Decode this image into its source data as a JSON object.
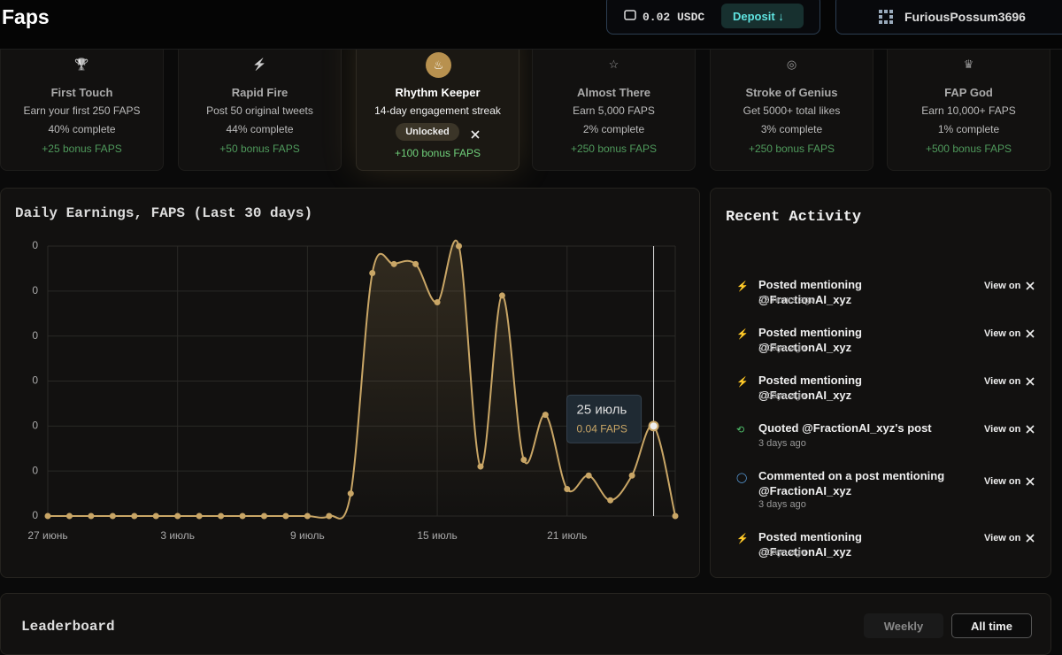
{
  "header": {
    "title": "Faps",
    "balance": "0.02 USDC",
    "deposit": "Deposit",
    "username": "FuriousPossum3696"
  },
  "achievements": [
    {
      "title": "First Touch",
      "description": "Earn your first 250 FAPS",
      "progress": "40% complete",
      "bonus": "+25 bonus FAPS"
    },
    {
      "title": "Rapid Fire",
      "description": "Post 50 original tweets",
      "progress": "44% complete",
      "bonus": "+50 bonus FAPS"
    },
    {
      "title": "Rhythm Keeper",
      "description": "14-day engagement streak",
      "status": "Unlocked",
      "bonus": "+100 bonus FAPS"
    },
    {
      "title": "Almost There",
      "description": "Earn 5,000 FAPS",
      "progress": "2% complete",
      "bonus": "+250 bonus FAPS"
    },
    {
      "title": "Stroke of Genius",
      "description": "Get 5000+ total likes",
      "progress": "3% complete",
      "bonus": "+250 bonus FAPS"
    },
    {
      "title": "FAP God",
      "description": "Earn 10,000+ FAPS",
      "progress": "1% complete",
      "bonus": "+500 bonus FAPS"
    }
  ],
  "chart_data": {
    "type": "line",
    "title": "Daily Earnings, FAPS (Last 30 days)",
    "categories": [
      "27 июнь",
      null,
      null,
      null,
      null,
      null,
      "3 июль",
      null,
      null,
      null,
      null,
      null,
      "9 июль",
      null,
      null,
      null,
      null,
      null,
      "15 июль",
      null,
      null,
      null,
      null,
      null,
      "21 июль",
      null,
      null,
      null,
      "25 июль",
      null
    ],
    "series": [
      {
        "name": "FAPS",
        "color": "#c9a666",
        "values": [
          0,
          0,
          0,
          0,
          0,
          0,
          0,
          0,
          0,
          0,
          0,
          0,
          0,
          0,
          0.01,
          0.108,
          0.112,
          0.112,
          0.095,
          0.12,
          0.022,
          0.098,
          0.025,
          0.045,
          0.012,
          0.018,
          0.007,
          0.018,
          0.04,
          0
        ],
        "value_labels": [
          null,
          null,
          null,
          null,
          null,
          null,
          null,
          null,
          null,
          null,
          null,
          null,
          null,
          null,
          null,
          null,
          null,
          null,
          null,
          null,
          null,
          null,
          null,
          null,
          null,
          null,
          null,
          null,
          "0.04 FAPS",
          null
        ]
      }
    ],
    "ylim": [
      0,
      0.12
    ],
    "yticks": [
      {
        "value": 0,
        "label": "0"
      },
      {
        "value": 0.02,
        "label": "0"
      },
      {
        "value": 0.04,
        "label": "0"
      },
      {
        "value": 0.06,
        "label": "0"
      },
      {
        "value": 0.08,
        "label": "0"
      },
      {
        "value": 0.1,
        "label": "0"
      },
      {
        "value": 0.12,
        "label": "0"
      }
    ],
    "grid": true
  },
  "recent_activity": {
    "title": "Recent Activity",
    "items": [
      {
        "text": "Posted mentioning @FractionAI_xyz",
        "time": "22 hours ago",
        "link": "View on"
      },
      {
        "text": "Posted mentioning @FractionAI_xyz",
        "time": "2 days ago",
        "link": "View on"
      },
      {
        "text": "Posted mentioning @FractionAI_xyz",
        "time": "2 days ago",
        "link": "View on"
      },
      {
        "text": "Quoted @FractionAI_xyz's post",
        "time": "3 days ago",
        "link": "View on"
      },
      {
        "text": "Commented on a post mentioning @FractionAI_xyz",
        "time": "3 days ago",
        "link": "View on"
      },
      {
        "text": "Posted mentioning @FractionAI_xyz",
        "time": "4 days ago",
        "link": "View on"
      }
    ]
  },
  "leaderboard": {
    "title": "Leaderboard",
    "tabs": [
      "Weekly",
      "All time"
    ]
  }
}
